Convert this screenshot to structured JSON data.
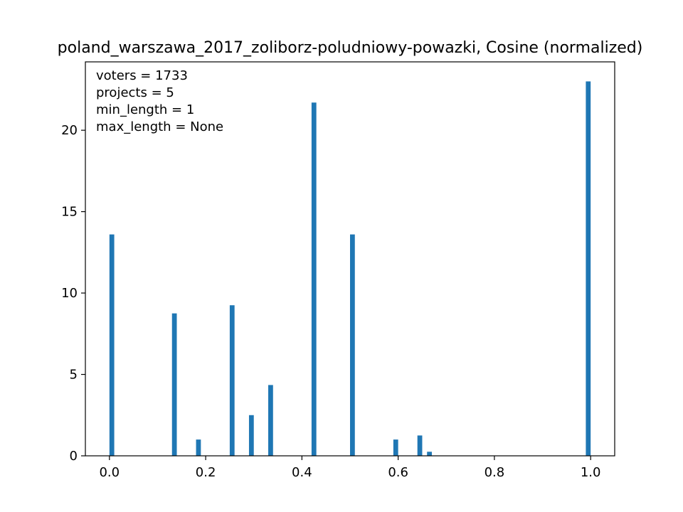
{
  "chart_data": {
    "type": "bar",
    "title": "poland_warszawa_2017_zoliborz-poludniowy-powazki, Cosine (normalized)",
    "xlabel": "",
    "ylabel": "",
    "xlim": [
      -0.05,
      1.05
    ],
    "ylim": [
      0,
      24.2
    ],
    "x_ticks": [
      0.0,
      0.2,
      0.4,
      0.6,
      0.8,
      1.0
    ],
    "x_tick_labels": [
      "0.0",
      "0.2",
      "0.4",
      "0.6",
      "0.8",
      "1.0"
    ],
    "y_ticks": [
      0,
      5,
      10,
      15,
      20
    ],
    "y_tick_labels": [
      "0",
      "5",
      "10",
      "15",
      "20"
    ],
    "bar_color": "#1f77b4",
    "bar_width": 0.01,
    "bars": [
      {
        "x": 0.005,
        "value": 13.6
      },
      {
        "x": 0.135,
        "value": 8.75
      },
      {
        "x": 0.185,
        "value": 1.0
      },
      {
        "x": 0.255,
        "value": 9.25
      },
      {
        "x": 0.295,
        "value": 2.5
      },
      {
        "x": 0.335,
        "value": 4.35
      },
      {
        "x": 0.425,
        "value": 21.7
      },
      {
        "x": 0.505,
        "value": 13.6
      },
      {
        "x": 0.595,
        "value": 1.0
      },
      {
        "x": 0.645,
        "value": 1.25
      },
      {
        "x": 0.665,
        "value": 0.25
      },
      {
        "x": 0.995,
        "value": 23.0
      }
    ],
    "annotation_lines": [
      "voters = 1733",
      "projects = 5",
      "min_length = 1",
      "max_length = None"
    ],
    "grid": false,
    "legend": "none"
  }
}
